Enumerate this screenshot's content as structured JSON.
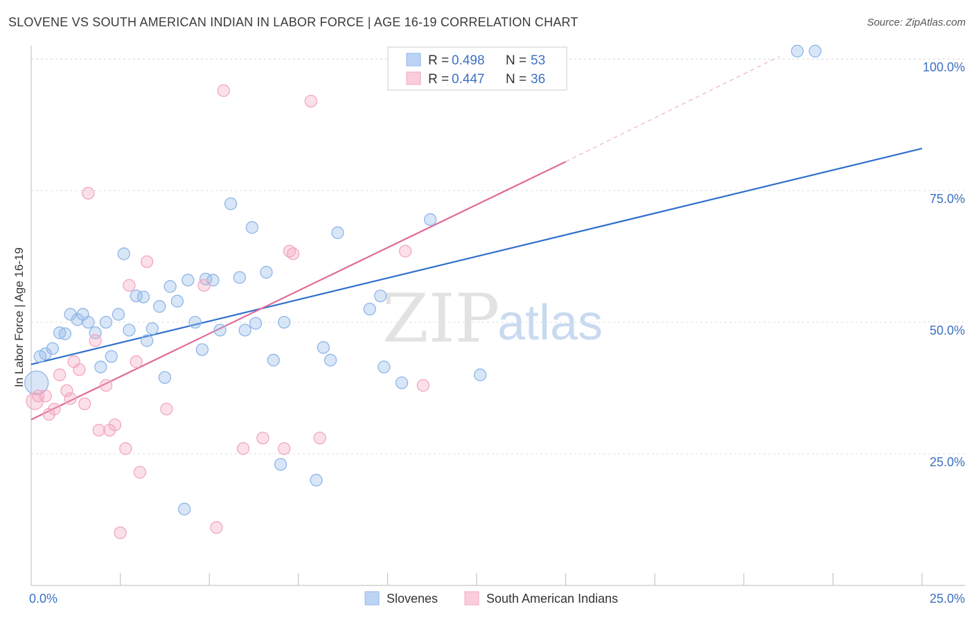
{
  "title": "SLOVENE VS SOUTH AMERICAN INDIAN IN LABOR FORCE | AGE 16-19 CORRELATION CHART",
  "source": "Source: ZipAtlas.com",
  "watermark": {
    "zip": "ZIP",
    "atlas": "atlas"
  },
  "chart_data": {
    "type": "scatter",
    "title": "SLOVENE VS SOUTH AMERICAN INDIAN IN LABOR FORCE | AGE 16-19 CORRELATION CHART",
    "xlabel": "",
    "ylabel": "In Labor Force | Age 16-19",
    "xlim": [
      0,
      25
    ],
    "ylim": [
      0,
      102
    ],
    "x_tick_labels": [
      "0.0%",
      "25.0%"
    ],
    "x_tick_values": [
      0,
      25
    ],
    "y_tick_labels": [
      "25.0%",
      "50.0%",
      "75.0%",
      "100.0%"
    ],
    "y_tick_values": [
      25,
      50,
      75,
      100
    ],
    "grid": true,
    "legend_placement": "top-center",
    "legend": [
      {
        "r_label": "R = ",
        "r_value": "0.498",
        "n_label": "N = ",
        "n_value": "53"
      },
      {
        "r_label": "R = ",
        "r_value": "0.447",
        "n_label": "N = ",
        "n_value": "36"
      }
    ],
    "series": [
      {
        "name": "Slovenes",
        "color": "#8fb6e8",
        "line_color": "#2f6fcc",
        "trend": {
          "x0": 0,
          "y0": 42.0,
          "x1": 25,
          "y1": 83.0
        },
        "points": [
          [
            0.15,
            38.5
          ],
          [
            0.25,
            43.5
          ],
          [
            0.4,
            44.0
          ],
          [
            0.6,
            45.0
          ],
          [
            0.8,
            48.0
          ],
          [
            0.95,
            47.8
          ],
          [
            1.1,
            51.5
          ],
          [
            1.3,
            50.5
          ],
          [
            1.45,
            51.5
          ],
          [
            1.6,
            50.0
          ],
          [
            1.8,
            48.0
          ],
          [
            1.95,
            41.5
          ],
          [
            2.1,
            50.0
          ],
          [
            2.25,
            43.5
          ],
          [
            2.45,
            51.5
          ],
          [
            2.6,
            63.0
          ],
          [
            2.75,
            48.5
          ],
          [
            2.95,
            55.0
          ],
          [
            3.15,
            54.8
          ],
          [
            3.25,
            46.5
          ],
          [
            3.4,
            48.8
          ],
          [
            3.6,
            53.0
          ],
          [
            3.75,
            39.5
          ],
          [
            3.9,
            56.8
          ],
          [
            4.1,
            54.0
          ],
          [
            4.3,
            14.5
          ],
          [
            4.4,
            58.0
          ],
          [
            4.6,
            50.0
          ],
          [
            4.8,
            44.8
          ],
          [
            4.9,
            58.2
          ],
          [
            5.1,
            58.0
          ],
          [
            5.3,
            48.5
          ],
          [
            5.6,
            72.5
          ],
          [
            5.85,
            58.5
          ],
          [
            6.0,
            48.5
          ],
          [
            6.2,
            68.0
          ],
          [
            6.3,
            49.8
          ],
          [
            6.6,
            59.5
          ],
          [
            6.8,
            42.8
          ],
          [
            7.0,
            23.0
          ],
          [
            7.1,
            50.0
          ],
          [
            8.0,
            20.0
          ],
          [
            8.2,
            45.2
          ],
          [
            8.4,
            42.8
          ],
          [
            8.6,
            67.0
          ],
          [
            9.5,
            52.5
          ],
          [
            9.8,
            55.0
          ],
          [
            9.9,
            41.5
          ],
          [
            10.4,
            38.5
          ],
          [
            11.2,
            69.5
          ],
          [
            12.6,
            40.0
          ],
          [
            21.5,
            101.5
          ],
          [
            22.0,
            101.5
          ]
        ]
      },
      {
        "name": "South American Indians",
        "color": "#f3a6bf",
        "line_color": "#e06a95",
        "trend": {
          "x0": 0,
          "y0": 31.5,
          "x1": 15,
          "y1": 80.5
        },
        "trend_extension": {
          "x0": 15,
          "y0": 80.5,
          "x1": 21.0,
          "y1": 100.5
        },
        "points": [
          [
            0.1,
            35.0
          ],
          [
            0.2,
            36.0
          ],
          [
            0.4,
            36.0
          ],
          [
            0.5,
            32.5
          ],
          [
            0.65,
            33.5
          ],
          [
            0.8,
            40.0
          ],
          [
            1.0,
            37.0
          ],
          [
            1.1,
            35.5
          ],
          [
            1.2,
            42.5
          ],
          [
            1.35,
            41.0
          ],
          [
            1.5,
            34.5
          ],
          [
            1.6,
            74.5
          ],
          [
            1.8,
            46.5
          ],
          [
            1.9,
            29.5
          ],
          [
            2.1,
            38.0
          ],
          [
            2.2,
            29.5
          ],
          [
            2.35,
            30.5
          ],
          [
            2.5,
            10.0
          ],
          [
            2.65,
            26.0
          ],
          [
            2.75,
            57.0
          ],
          [
            2.95,
            42.5
          ],
          [
            3.05,
            21.5
          ],
          [
            3.25,
            61.5
          ],
          [
            3.8,
            33.5
          ],
          [
            4.85,
            57.0
          ],
          [
            5.2,
            11.0
          ],
          [
            5.4,
            94.0
          ],
          [
            5.95,
            26.0
          ],
          [
            6.5,
            28.0
          ],
          [
            7.1,
            26.0
          ],
          [
            7.25,
            63.5
          ],
          [
            7.35,
            63.0
          ],
          [
            7.85,
            92.0
          ],
          [
            8.1,
            28.0
          ],
          [
            10.5,
            63.5
          ],
          [
            11.0,
            38.0
          ]
        ]
      }
    ]
  }
}
